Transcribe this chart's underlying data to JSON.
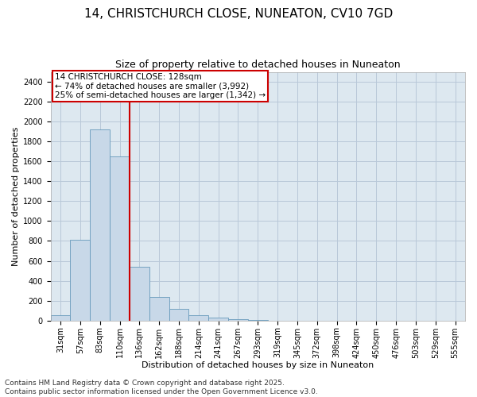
{
  "title_line1": "14, CHRISTCHURCH CLOSE, NUNEATON, CV10 7GD",
  "title_line2": "Size of property relative to detached houses in Nuneaton",
  "xlabel": "Distribution of detached houses by size in Nuneaton",
  "ylabel": "Number of detached properties",
  "categories": [
    "31sqm",
    "57sqm",
    "83sqm",
    "110sqm",
    "136sqm",
    "162sqm",
    "188sqm",
    "214sqm",
    "241sqm",
    "267sqm",
    "293sqm",
    "319sqm",
    "345sqm",
    "372sqm",
    "398sqm",
    "424sqm",
    "450sqm",
    "476sqm",
    "503sqm",
    "529sqm",
    "555sqm"
  ],
  "values": [
    55,
    810,
    1920,
    1650,
    540,
    240,
    115,
    55,
    30,
    15,
    8,
    0,
    0,
    0,
    0,
    0,
    0,
    0,
    0,
    0,
    0
  ],
  "bar_color": "#c8d8e8",
  "bar_edge_color": "#6699bb",
  "vline_color": "#cc0000",
  "ylim": [
    0,
    2500
  ],
  "yticks": [
    0,
    200,
    400,
    600,
    800,
    1000,
    1200,
    1400,
    1600,
    1800,
    2000,
    2200,
    2400
  ],
  "annotation_text": "14 CHRISTCHURCH CLOSE: 128sqm\n← 74% of detached houses are smaller (3,992)\n25% of semi-detached houses are larger (1,342) →",
  "annotation_box_color": "#ffffff",
  "annotation_box_edge": "#cc0000",
  "footer_text": "Contains HM Land Registry data © Crown copyright and database right 2025.\nContains public sector information licensed under the Open Government Licence v3.0.",
  "bg_color": "#ffffff",
  "plot_bg_color": "#dde8f0",
  "grid_color": "#b8c8d8",
  "title_fontsize": 11,
  "subtitle_fontsize": 9,
  "axis_label_fontsize": 8,
  "tick_fontsize": 7,
  "annotation_fontsize": 7.5,
  "footer_fontsize": 6.5
}
